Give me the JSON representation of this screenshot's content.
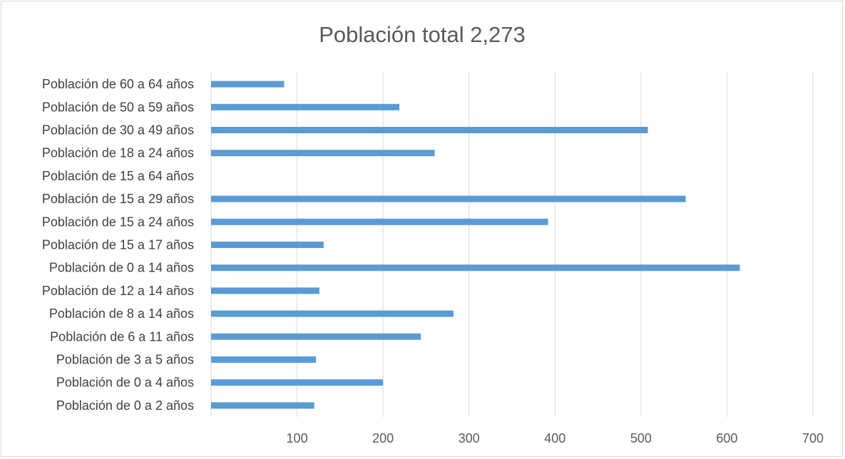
{
  "chart_data": {
    "type": "bar",
    "orientation": "horizontal",
    "title": "Población total 2,273",
    "xlabel": "",
    "ylabel": "",
    "xlim": [
      0,
      700
    ],
    "x_ticks": [
      "100",
      "200",
      "300",
      "400",
      "500",
      "600",
      "700"
    ],
    "grid": true,
    "legend": "none",
    "bar_color": "#5b9bd5",
    "categories": [
      "Población de 60 a 64 años",
      "Población de 50 a 59 años",
      "Población de 30 a 49 años",
      "Población de 18 a 24 años",
      "Población de 15 a 64 años",
      "Población de 15 a 29 años",
      "Población de 15 a 24 años",
      "Población de 15 a 17 años",
      "Población de 0 a 14 años",
      "Población de 12 a 14 años",
      "Población de 8 a 14 años",
      "Población de 6 a 11 años",
      "Población de 3 a 5 años",
      "Población de 0 a 4 años",
      "Población de 0 a 2 años"
    ],
    "values": [
      85,
      219,
      508,
      260,
      0,
      552,
      392,
      131,
      615,
      126,
      282,
      244,
      122,
      200,
      120
    ]
  }
}
